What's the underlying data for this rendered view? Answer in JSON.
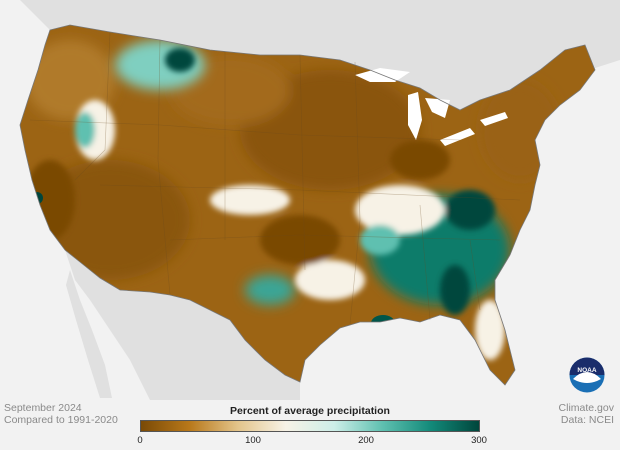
{
  "footer_left": {
    "line1": "September 2024",
    "line2": "Compared to 1991-2020"
  },
  "footer_right": {
    "line1": "Climate.gov",
    "line2": "Data: NCEI"
  },
  "legend": {
    "title": "Percent of average precipitation",
    "ticks": [
      "0",
      "100",
      "200",
      "300"
    ],
    "colors": [
      "#7a4a06",
      "#b8781a",
      "#e3c48a",
      "#f7f2e6",
      "#cdeee8",
      "#5fc0b0",
      "#138a7a",
      "#00463c"
    ]
  },
  "logo": {
    "text": "NOAA",
    "icon": "noaa-logo-icon"
  },
  "map": {
    "background": "#f2f2f2",
    "neighbor_land": "#e0e0e0",
    "water": "#ffffff",
    "regions": [
      {
        "id": "pacific-northwest",
        "color": "#b07a2a"
      },
      {
        "id": "idaho-montana-wet",
        "color": "#7fcfc0"
      },
      {
        "id": "northern-rockies",
        "color": "#a36a1a"
      },
      {
        "id": "great-plains",
        "color": "#8a5510"
      },
      {
        "id": "southwest",
        "color": "#8a560e"
      },
      {
        "id": "texas-wet",
        "color": "#3aa595"
      },
      {
        "id": "southeast-wet",
        "color": "#0f7b6a"
      },
      {
        "id": "northeast",
        "color": "#9a6218"
      },
      {
        "id": "louisiana-wet",
        "color": "#00564a"
      }
    ]
  }
}
